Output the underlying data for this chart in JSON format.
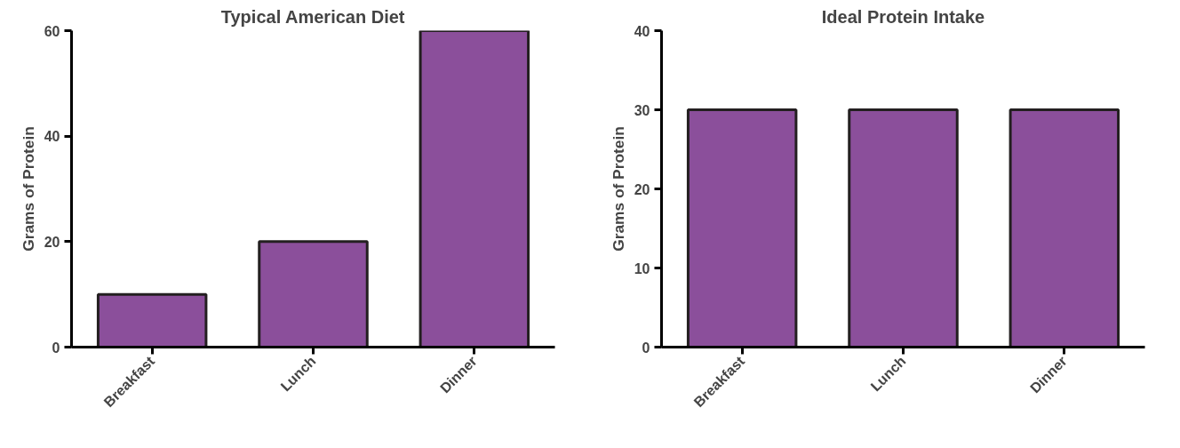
{
  "chart_data": [
    {
      "type": "bar",
      "title": "Typical American Diet",
      "ylabel": "Grams of Protein",
      "categories": [
        "Breakfast",
        "Lunch",
        "Dinner"
      ],
      "values": [
        10,
        20,
        60
      ],
      "color": "#8b4f9b",
      "ylim": [
        0,
        60
      ],
      "yticks": [
        0,
        20,
        40,
        60
      ],
      "grid": false
    },
    {
      "type": "bar",
      "title": "Ideal Protein Intake",
      "ylabel": "Grams of Protein",
      "categories": [
        "Breakfast",
        "Lunch",
        "Dinner"
      ],
      "values": [
        30,
        30,
        30
      ],
      "color": "#8b4f9b",
      "ylim": [
        0,
        40
      ],
      "yticks": [
        0,
        10,
        20,
        30,
        40
      ],
      "grid": false
    }
  ]
}
